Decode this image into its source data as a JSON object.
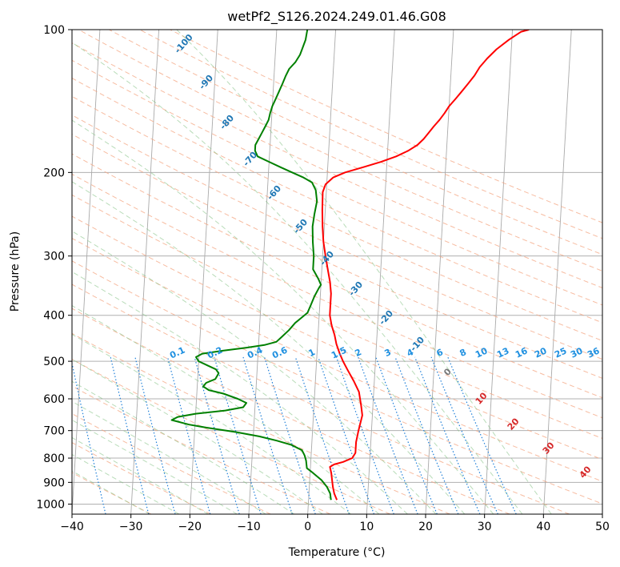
{
  "chart_data": {
    "type": "line",
    "title": "wetPf2_S126.2024.249.01.46.G08",
    "xlabel": "Temperature (°C)",
    "ylabel": "Pressure (hPa)",
    "xlim": [
      -40,
      50
    ],
    "ylim": [
      1050,
      100
    ],
    "y_scale": "log",
    "x_ticks": [
      -40,
      -30,
      -20,
      -10,
      0,
      10,
      20,
      30,
      40,
      50
    ],
    "y_ticks": [
      100,
      200,
      300,
      400,
      500,
      600,
      700,
      800,
      900,
      1000
    ],
    "grid": true,
    "legend": "none",
    "series": [
      {
        "color": "#ff0000",
        "points": [
          [
            4.8,
            980
          ],
          [
            4.3,
            950
          ],
          [
            4.0,
            920
          ],
          [
            3.8,
            890
          ],
          [
            3.6,
            860
          ],
          [
            3.3,
            835
          ],
          [
            4.0,
            825
          ],
          [
            5.5,
            815
          ],
          [
            7.0,
            800
          ],
          [
            7.5,
            780
          ],
          [
            7.5,
            740
          ],
          [
            7.8,
            700
          ],
          [
            8.3,
            650
          ],
          [
            8.0,
            620
          ],
          [
            7.5,
            580
          ],
          [
            6.5,
            550
          ],
          [
            5.3,
            520
          ],
          [
            4.5,
            500
          ],
          [
            3.8,
            480
          ],
          [
            3.2,
            460
          ],
          [
            2.8,
            440
          ],
          [
            2.2,
            420
          ],
          [
            1.8,
            400
          ],
          [
            1.8,
            380
          ],
          [
            1.8,
            360
          ],
          [
            1.5,
            340
          ],
          [
            1.0,
            320
          ],
          [
            0.5,
            300
          ],
          [
            0.0,
            280
          ],
          [
            -0.3,
            260
          ],
          [
            -0.5,
            240
          ],
          [
            -0.6,
            220
          ],
          [
            -0.2,
            212
          ],
          [
            1.0,
            205
          ],
          [
            3.0,
            200
          ],
          [
            6.0,
            195
          ],
          [
            9.0,
            190
          ],
          [
            11.5,
            185
          ],
          [
            13.5,
            180
          ],
          [
            15.0,
            175
          ],
          [
            16.0,
            170
          ],
          [
            16.8,
            165
          ],
          [
            17.6,
            160
          ],
          [
            18.5,
            155
          ],
          [
            19.3,
            150
          ],
          [
            20.0,
            145
          ],
          [
            21.0,
            140
          ],
          [
            22.0,
            135
          ],
          [
            23.0,
            130
          ],
          [
            24.0,
            125
          ],
          [
            24.8,
            120
          ],
          [
            26.0,
            115
          ],
          [
            27.5,
            110
          ],
          [
            29.5,
            105
          ],
          [
            31.5,
            101
          ],
          [
            32.8,
            100
          ]
        ]
      },
      {
        "color": "#008000",
        "points": [
          [
            3.8,
            980
          ],
          [
            3.6,
            950
          ],
          [
            3.0,
            920
          ],
          [
            2.0,
            890
          ],
          [
            0.5,
            860
          ],
          [
            -0.6,
            840
          ],
          [
            -0.8,
            810
          ],
          [
            -1.1,
            790
          ],
          [
            -1.6,
            770
          ],
          [
            -3.5,
            750
          ],
          [
            -6.0,
            735
          ],
          [
            -9.0,
            720
          ],
          [
            -13.0,
            705
          ],
          [
            -18.0,
            690
          ],
          [
            -21.0,
            680
          ],
          [
            -24.0,
            665
          ],
          [
            -23.0,
            655
          ],
          [
            -20.0,
            645
          ],
          [
            -15.0,
            635
          ],
          [
            -12.0,
            625
          ],
          [
            -11.5,
            612
          ],
          [
            -13.0,
            600
          ],
          [
            -15.5,
            585
          ],
          [
            -18.0,
            575
          ],
          [
            -19.0,
            565
          ],
          [
            -18.5,
            555
          ],
          [
            -17.0,
            545
          ],
          [
            -16.5,
            530
          ],
          [
            -17.0,
            520
          ],
          [
            -18.5,
            510
          ],
          [
            -20.0,
            500
          ],
          [
            -20.5,
            490
          ],
          [
            -19.5,
            482
          ],
          [
            -16.0,
            475
          ],
          [
            -12.0,
            468
          ],
          [
            -9.0,
            462
          ],
          [
            -7.0,
            455
          ],
          [
            -6.2,
            445
          ],
          [
            -5.0,
            430
          ],
          [
            -4.0,
            415
          ],
          [
            -3.0,
            405
          ],
          [
            -2.0,
            395
          ],
          [
            -1.5,
            380
          ],
          [
            -1.0,
            365
          ],
          [
            -0.3,
            350
          ],
          [
            0.0,
            345
          ],
          [
            -0.5,
            335
          ],
          [
            -1.5,
            320
          ],
          [
            -1.5,
            300
          ],
          [
            -1.8,
            280
          ],
          [
            -2.0,
            260
          ],
          [
            -1.8,
            245
          ],
          [
            -1.5,
            230
          ],
          [
            -1.8,
            218
          ],
          [
            -2.5,
            210
          ],
          [
            -4.0,
            205
          ],
          [
            -6.0,
            200
          ],
          [
            -8.0,
            195
          ],
          [
            -10.0,
            190
          ],
          [
            -12.0,
            185
          ],
          [
            -12.5,
            180
          ],
          [
            -12.5,
            175
          ],
          [
            -12.0,
            170
          ],
          [
            -11.5,
            165
          ],
          [
            -11.0,
            160
          ],
          [
            -10.5,
            155
          ],
          [
            -10.3,
            150
          ],
          [
            -10.0,
            145
          ],
          [
            -9.5,
            140
          ],
          [
            -9.0,
            135
          ],
          [
            -8.5,
            130
          ],
          [
            -8.0,
            125
          ],
          [
            -7.5,
            121
          ],
          [
            -6.5,
            117
          ],
          [
            -5.8,
            113
          ],
          [
            -5.5,
            110
          ],
          [
            -5.0,
            105
          ],
          [
            -4.8,
            100
          ]
        ]
      }
    ],
    "dry_adiabat_labels": [
      "-100",
      "-90",
      "-80",
      "-70",
      "-60",
      "-50",
      "-40",
      "-30",
      "-20",
      "-10",
      "0",
      "10",
      "20",
      "30",
      "40"
    ],
    "mixing_ratio_labels": [
      "0.1",
      "0.2",
      "0.4",
      "0.6",
      "1",
      "1.5",
      "2",
      "3",
      "4",
      "6",
      "8",
      "10",
      "13",
      "16",
      "20",
      "25",
      "30",
      "36"
    ]
  }
}
